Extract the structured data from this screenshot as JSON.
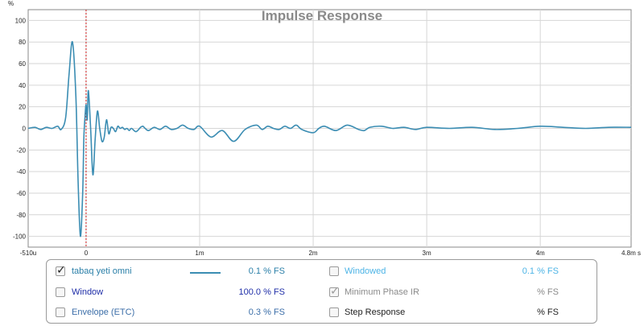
{
  "chart_data": {
    "type": "line",
    "title": "Impulse Response",
    "ylabel": "%",
    "ylim": [
      -110,
      110
    ],
    "y_ticks": [
      "100",
      "80",
      "60",
      "40",
      "20",
      "0",
      "-20",
      "-40",
      "-60",
      "-80",
      "-100"
    ],
    "x_ticks": [
      "-510u",
      "0",
      "1m",
      "2m",
      "3m",
      "4m",
      "4.8m s"
    ],
    "xlim_seconds": [
      -0.00051,
      0.0048
    ],
    "grid": true,
    "marker_x": 0,
    "series": [
      {
        "name": "tabaq yeti omni",
        "color": "#3b8db3",
        "x_ms": [
          -0.51,
          -0.45,
          -0.4,
          -0.35,
          -0.3,
          -0.25,
          -0.22,
          -0.18,
          -0.15,
          -0.12,
          -0.09,
          -0.07,
          -0.05,
          -0.03,
          -0.02,
          -0.01,
          0.0,
          0.01,
          0.02,
          0.04,
          0.06,
          0.08,
          0.1,
          0.12,
          0.14,
          0.16,
          0.18,
          0.2,
          0.22,
          0.24,
          0.26,
          0.28,
          0.3,
          0.32,
          0.34,
          0.36,
          0.38,
          0.4,
          0.44,
          0.48,
          0.5,
          0.52,
          0.55,
          0.6,
          0.65,
          0.7,
          0.75,
          0.8,
          0.85,
          0.9,
          0.95,
          1.0,
          1.1,
          1.2,
          1.3,
          1.4,
          1.5,
          1.55,
          1.6,
          1.65,
          1.7,
          1.75,
          1.8,
          1.85,
          1.9,
          2.0,
          2.05,
          2.1,
          2.2,
          2.3,
          2.4,
          2.45,
          2.5,
          2.6,
          2.7,
          2.8,
          2.9,
          3.0,
          3.2,
          3.4,
          3.6,
          3.8,
          4.0,
          4.2,
          4.4,
          4.6,
          4.8
        ],
        "y_pct": [
          0,
          1,
          -1,
          1,
          0,
          2,
          -1,
          10,
          50,
          80,
          30,
          -50,
          -100,
          -60,
          -10,
          10,
          22,
          8,
          35,
          0,
          -43,
          -10,
          16,
          0,
          -12,
          -8,
          8,
          -5,
          1,
          0,
          -3,
          2,
          0,
          1,
          -1,
          0,
          -2,
          0,
          -3,
          1,
          2,
          0,
          -2,
          1,
          -1,
          2,
          -1,
          0,
          3,
          0,
          -1,
          2,
          -8,
          -2,
          -12,
          -1,
          3,
          -1,
          2,
          0,
          -1,
          2,
          0,
          3,
          -1,
          -4,
          0,
          2,
          -2,
          3,
          -1,
          -2,
          1,
          2,
          0,
          1,
          -1,
          1,
          0,
          1,
          -1,
          0,
          2,
          1,
          0,
          1,
          1
        ]
      }
    ]
  },
  "legend": {
    "rows": [
      {
        "left": {
          "label": "tabaq yeti omni",
          "checked": true,
          "value": "0.1 % FS",
          "label_color": "#2a7fa8",
          "value_color": "#2a7fa8"
        },
        "right": {
          "label": "Windowed",
          "checked": false,
          "value": "0.1 % FS",
          "label_color": "#4db4e6",
          "value_color": "#4db4e6"
        }
      },
      {
        "left": {
          "label": "Window",
          "checked": false,
          "value": "100.0 % FS",
          "label_color": "#1f2ea8",
          "value_color": "#1f2ea8"
        },
        "right": {
          "label": "Minimum Phase IR",
          "checked": true,
          "value": "% FS",
          "label_color": "#8a8a8a",
          "value_color": "#8a8a8a"
        }
      },
      {
        "left": {
          "label": "Envelope (ETC)",
          "checked": false,
          "value": "0.3 % FS",
          "label_color": "#3b6ea8",
          "value_color": "#3b6ea8"
        },
        "right": {
          "label": "Step Response",
          "checked": false,
          "value": "% FS",
          "label_color": "#222222",
          "value_color": "#222222"
        }
      }
    ]
  }
}
